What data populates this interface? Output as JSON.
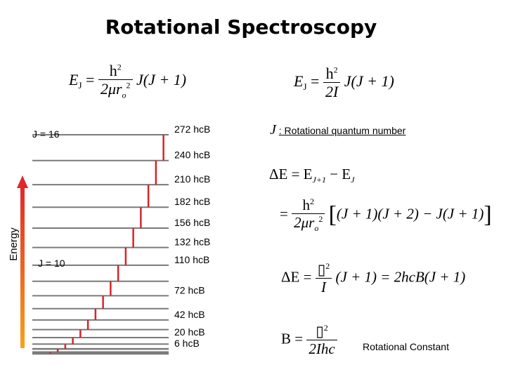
{
  "title": "Rotational Spectroscopy",
  "equations": {
    "eq1": {
      "lhs": "E",
      "lhs_sub": "J",
      "num": "h",
      "num_sup": "2",
      "den_a": "2μr",
      "den_sub": "o",
      "den_sup": "2",
      "tail": "J(J + 1)"
    },
    "eq2": {
      "lhs": "E",
      "lhs_sub": "J",
      "num": "h",
      "num_sup": "2",
      "den": "2I",
      "tail": "J(J + 1)"
    },
    "j_symbol": "J",
    "j_note": ": Rotational quantum number",
    "delta1": {
      "lhs": "ΔE = E",
      "sub1": "J+1",
      "mid": " − E",
      "sub2": "J"
    },
    "delta2": {
      "num": "h",
      "num_sup": "2",
      "den_a": "2μr",
      "den_sub": "o",
      "den_sup": "2",
      "bracket_body": "(J + 1)(J + 2) − J(J + 1)"
    },
    "delta3": {
      "lhs": "ΔE =",
      "num": "▯",
      "num_sup": "2",
      "den": "I",
      "tail": "(J + 1) = 2hcB(J + 1)"
    },
    "b_eq": {
      "lhs": "B =",
      "num": "▯",
      "num_sup": "2",
      "den": "2Ihc"
    },
    "b_label": "Rotational Constant"
  },
  "diagram": {
    "axis_label": "Energy",
    "j_top": "J = 16",
    "j_mid": "J = 10",
    "energy_labels": [
      "272 hcB",
      "240 hcB",
      "210 hcB",
      "182 hcB",
      "156 hcB",
      "132 hcB",
      "110 hcB",
      "72 hcB",
      "42 hcB",
      "20 hcB",
      "6 hcB"
    ],
    "colors": {
      "transition": "#d8232a",
      "level": "#7a7a7a"
    }
  }
}
